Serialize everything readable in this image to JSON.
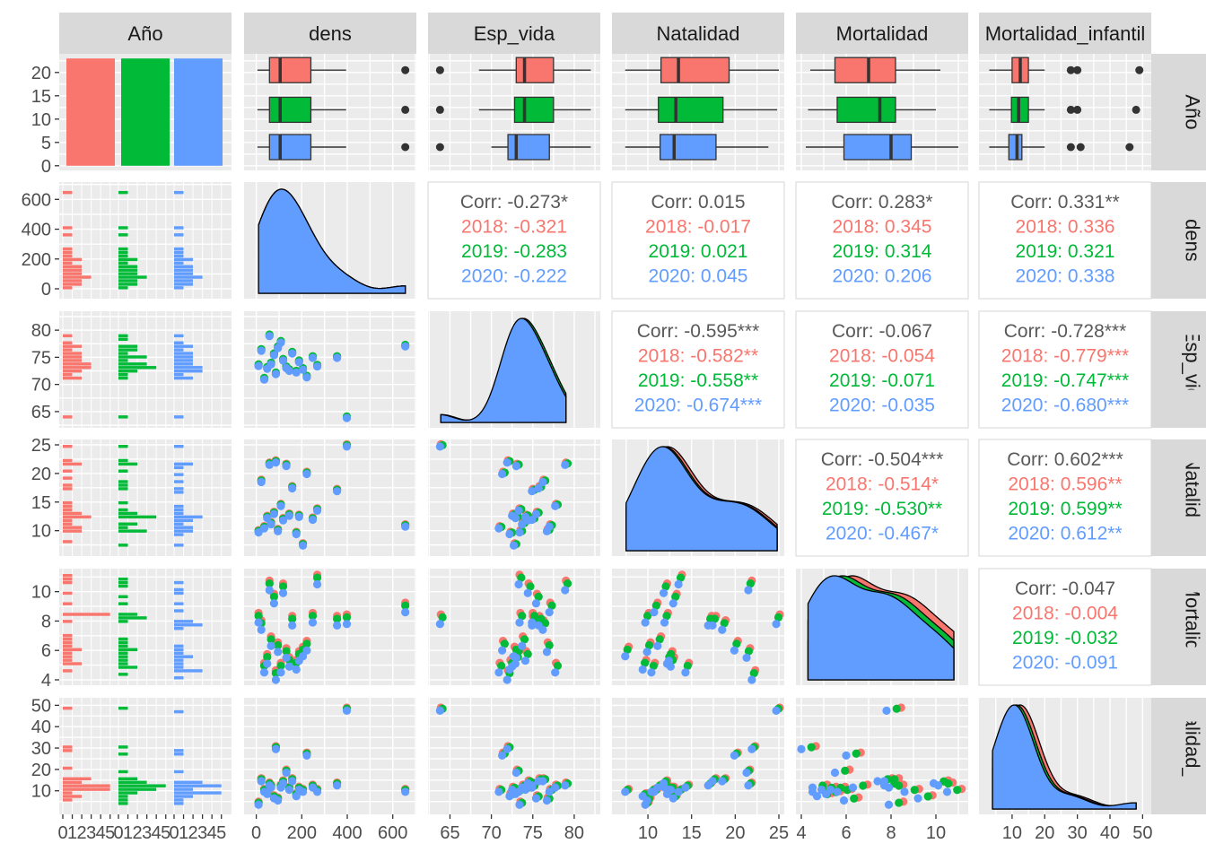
{
  "chart_data": {
    "type": "pairs",
    "variables": [
      "Año",
      "dens",
      "Esp_vida",
      "Natalidad",
      "Mortalidad",
      "Mortalidad_infantil"
    ],
    "groups": [
      {
        "name": "2018",
        "color": "#F8766D"
      },
      {
        "name": "2019",
        "color": "#00BA38"
      },
      {
        "name": "2020",
        "color": "#619CFF"
      }
    ],
    "panel_background": "#EBEBEB",
    "grid_color": "#FFFFFF",
    "strip_fill": "#D9D9D9",
    "corr_label": "Corr:",
    "axes": {
      "dens": {
        "ticks": [
          "0",
          "200",
          "400",
          "600"
        ],
        "lim": [
          -30,
          680
        ]
      },
      "Esp_vida": {
        "ticks": [
          "65",
          "70",
          "75",
          "80"
        ],
        "lim": [
          63,
          82.5
        ]
      },
      "Natalidad": {
        "ticks": [
          "10",
          "15",
          "20",
          "25"
        ],
        "lim": [
          6.5,
          25
        ]
      },
      "Mortalidad": {
        "ticks": [
          "4",
          "6",
          "8",
          "10"
        ],
        "lim": [
          4,
          11.2
        ]
      },
      "Mortalidad_infantil": {
        "ticks": [
          "10",
          "20",
          "30",
          "40",
          "50"
        ],
        "lim": [
          1.5,
          51
        ]
      },
      "count": {
        "ticks": [
          "0",
          "5",
          "10",
          "15",
          "20"
        ],
        "lim": [
          -1,
          24
        ]
      },
      "hist_count": {
        "ticks": [
          "0",
          "1",
          "2",
          "3",
          "4",
          "5"
        ]
      }
    },
    "correlations": [
      {
        "row": "dens",
        "col": "Esp_vida",
        "overall": "-0.273*",
        "groups": [
          "-0.321",
          "-0.283",
          "-0.222"
        ]
      },
      {
        "row": "dens",
        "col": "Natalidad",
        "overall": "0.015",
        "groups": [
          "-0.017",
          "0.021",
          "0.045"
        ]
      },
      {
        "row": "dens",
        "col": "Mortalidad",
        "overall": "0.283*",
        "groups": [
          "0.345",
          "0.314",
          "0.206"
        ]
      },
      {
        "row": "dens",
        "col": "Mortalidad_infantil",
        "overall": "0.331**",
        "groups": [
          "0.336",
          "0.321",
          "0.338"
        ]
      },
      {
        "row": "Esp_vida",
        "col": "Natalidad",
        "overall": "-0.595***",
        "groups": [
          "-0.582**",
          "-0.558**",
          "-0.674***"
        ]
      },
      {
        "row": "Esp_vida",
        "col": "Mortalidad",
        "overall": "-0.067",
        "groups": [
          "-0.054",
          "-0.071",
          "-0.035"
        ]
      },
      {
        "row": "Esp_vida",
        "col": "Mortalidad_infantil",
        "overall": "-0.728***",
        "groups": [
          "-0.779***",
          "-0.747***",
          "-0.680***"
        ]
      },
      {
        "row": "Natalidad",
        "col": "Mortalidad",
        "overall": "-0.504***",
        "groups": [
          "-0.514*",
          "-0.530**",
          "-0.467*"
        ]
      },
      {
        "row": "Natalidad",
        "col": "Mortalidad_infantil",
        "overall": "0.602***",
        "groups": [
          "0.596**",
          "0.599**",
          "0.612**"
        ]
      },
      {
        "row": "Mortalidad",
        "col": "Mortalidad_infantil",
        "overall": "-0.047",
        "groups": [
          "-0.004",
          "-0.032",
          "-0.091"
        ]
      }
    ],
    "counts_per_year": [
      23,
      23,
      23
    ],
    "boxplots": {
      "dens": [
        {
          "q1": 58,
          "med": 105,
          "q3": 240,
          "lo": 5,
          "hi": 395,
          "out": [
            655
          ]
        },
        {
          "q1": 58,
          "med": 105,
          "q3": 240,
          "lo": 5,
          "hi": 395,
          "out": [
            655
          ]
        },
        {
          "q1": 58,
          "med": 105,
          "q3": 240,
          "lo": 5,
          "hi": 395,
          "out": [
            655
          ]
        }
      ],
      "Esp_vida": [
        {
          "q1": 73.0,
          "med": 74.0,
          "q3": 77.5,
          "lo": 68.5,
          "hi": 82.0,
          "out": [
            63.8
          ]
        },
        {
          "q1": 72.8,
          "med": 74.0,
          "q3": 77.5,
          "lo": 68.5,
          "hi": 82.0,
          "out": [
            63.8
          ]
        },
        {
          "q1": 72.0,
          "med": 73.0,
          "q3": 77.0,
          "lo": 70.0,
          "hi": 82.0,
          "out": [
            63.8
          ]
        }
      ],
      "Natalidad": [
        {
          "q1": 11.5,
          "med": 13.5,
          "q3": 19.3,
          "lo": 7.4,
          "hi": 25.0
        },
        {
          "q1": 11.2,
          "med": 13.2,
          "q3": 18.6,
          "lo": 7.4,
          "hi": 24.8
        },
        {
          "q1": 11.4,
          "med": 13.0,
          "q3": 17.8,
          "lo": 7.4,
          "hi": 23.8
        }
      ],
      "Mortalidad": [
        {
          "q1": 5.5,
          "med": 7.0,
          "q3": 8.2,
          "lo": 4.4,
          "hi": 10.2
        },
        {
          "q1": 5.6,
          "med": 7.5,
          "q3": 8.2,
          "lo": 4.3,
          "hi": 10.0
        },
        {
          "q1": 5.9,
          "med": 8.0,
          "q3": 8.9,
          "lo": 4.2,
          "hi": 11.0
        }
      ],
      "Mortalidad_infantil": [
        {
          "q1": 10.0,
          "med": 12.5,
          "q3": 15.0,
          "lo": 3.0,
          "hi": 20.0,
          "out": [
            28,
            30,
            49
          ]
        },
        {
          "q1": 9.8,
          "med": 12.0,
          "q3": 15.0,
          "lo": 3.0,
          "hi": 20.0,
          "out": [
            28,
            30,
            48
          ]
        },
        {
          "q1": 9.0,
          "med": 11.5,
          "q3": 13.0,
          "lo": 3.0,
          "hi": 20.0,
          "out": [
            28,
            31,
            46
          ]
        }
      ]
    },
    "observations": [
      {
        "dens": 10,
        "Esp_vida": 73.5,
        "Natalidad": 9.8,
        "Mortalidad": 8.2,
        "Mortalidad_infantil": 4
      },
      {
        "dens": 22,
        "Esp_vida": 76.3,
        "Natalidad": 18.6,
        "Mortalidad": 7.7,
        "Mortalidad_infantil": 15
      },
      {
        "dens": 35,
        "Esp_vida": 71.0,
        "Natalidad": 10.5,
        "Mortalidad": 4.8,
        "Mortalidad_infantil": 10
      },
      {
        "dens": 48,
        "Esp_vida": 73.0,
        "Natalidad": 12.3,
        "Mortalidad": 5.4,
        "Mortalidad_infantil": 9
      },
      {
        "dens": 58,
        "Esp_vida": 79.0,
        "Natalidad": 21.6,
        "Mortalidad": 10.4,
        "Mortalidad_infantil": 13
      },
      {
        "dens": 65,
        "Esp_vida": 73.8,
        "Natalidad": 11.2,
        "Mortalidad": 6.6,
        "Mortalidad_infantil": 12
      },
      {
        "dens": 78,
        "Esp_vida": 75.5,
        "Natalidad": 13.0,
        "Mortalidad": 9.5,
        "Mortalidad_infantil": 7
      },
      {
        "dens": 86,
        "Esp_vida": 72.0,
        "Natalidad": 22.0,
        "Mortalidad": 4.3,
        "Mortalidad_infantil": 30
      },
      {
        "dens": 95,
        "Esp_vida": 76.8,
        "Natalidad": 10.0,
        "Mortalidad": 6.2,
        "Mortalidad_infantil": 6
      },
      {
        "dens": 108,
        "Esp_vida": 77.8,
        "Natalidad": 14.4,
        "Mortalidad": 4.8,
        "Mortalidad_infantil": 12
      },
      {
        "dens": 118,
        "Esp_vida": 74.5,
        "Natalidad": 11.9,
        "Mortalidad": 10.2,
        "Mortalidad_infantil": 14
      },
      {
        "dens": 132,
        "Esp_vida": 73.1,
        "Natalidad": 21.4,
        "Mortalidad": 5.8,
        "Mortalidad_infantil": 19
      },
      {
        "dens": 145,
        "Esp_vida": 72.6,
        "Natalidad": 12.7,
        "Mortalidad": 5.2,
        "Mortalidad_infantil": 11
      },
      {
        "dens": 158,
        "Esp_vida": 75.8,
        "Natalidad": 17.5,
        "Mortalidad": 8.0,
        "Mortalidad_infantil": 15
      },
      {
        "dens": 176,
        "Esp_vida": 72.3,
        "Natalidad": 9.5,
        "Mortalidad": 5.0,
        "Mortalidad_infantil": 8
      },
      {
        "dens": 188,
        "Esp_vida": 74.2,
        "Natalidad": 12.5,
        "Mortalidad": 5.6,
        "Mortalidad_infantil": 11
      },
      {
        "dens": 205,
        "Esp_vida": 72.8,
        "Natalidad": 7.5,
        "Mortalidad": 5.9,
        "Mortalidad_infantil": 10
      },
      {
        "dens": 222,
        "Esp_vida": 71.4,
        "Natalidad": 20.0,
        "Mortalidad": 6.3,
        "Mortalidad_infantil": 27
      },
      {
        "dens": 248,
        "Esp_vida": 75.0,
        "Natalidad": 12.0,
        "Mortalidad": 8.2,
        "Mortalidad_infantil": 12
      },
      {
        "dens": 268,
        "Esp_vida": 73.4,
        "Natalidad": 13.6,
        "Mortalidad": 10.8,
        "Mortalidad_infantil": 10
      },
      {
        "dens": 355,
        "Esp_vida": 75.0,
        "Natalidad": 17.0,
        "Mortalidad": 8.0,
        "Mortalidad_infantil": 13
      },
      {
        "dens": 398,
        "Esp_vida": 63.9,
        "Natalidad": 24.8,
        "Mortalidad": 8.1,
        "Mortalidad_infantil": 48
      },
      {
        "dens": 655,
        "Esp_vida": 77.1,
        "Natalidad": 10.8,
        "Mortalidad": 8.9,
        "Mortalidad_infantil": 10
      }
    ],
    "year_offsets": [
      {
        "dens": 0,
        "Esp_vida": 0.0,
        "Natalidad": 0.3,
        "Mortalidad": 0.35,
        "Mortalidad_infantil": 0.9
      },
      {
        "dens": 0,
        "Esp_vida": 0.2,
        "Natalidad": 0.15,
        "Mortalidad": 0.15,
        "Mortalidad_infantil": 0.4
      },
      {
        "dens": 0,
        "Esp_vida": -0.1,
        "Natalidad": -0.1,
        "Mortalidad": -0.3,
        "Mortalidad_infantil": -0.5
      }
    ]
  }
}
